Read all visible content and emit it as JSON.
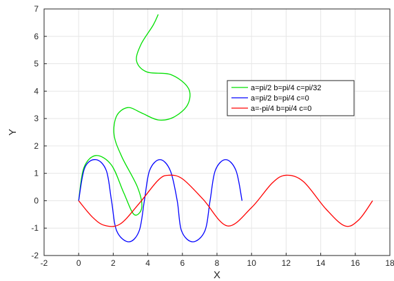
{
  "chart_data": {
    "type": "line",
    "title": "",
    "xlabel": "X",
    "ylabel": "Y",
    "xlim": [
      -2,
      18
    ],
    "ylim": [
      -2,
      7
    ],
    "xticks": [
      "-2",
      "0",
      "2",
      "4",
      "6",
      "8",
      "10",
      "12",
      "14",
      "16",
      "18"
    ],
    "yticks": [
      "-2",
      "-1",
      "0",
      "1",
      "2",
      "3",
      "4",
      "5",
      "6",
      "7"
    ],
    "grid": true,
    "legend_position": "right",
    "series": [
      {
        "name": "a=pi/2 b=pi/4 c=pi/32",
        "color": "#00e000",
        "x": [
          0,
          0.3,
          1.0,
          1.9,
          2.6,
          3.2,
          3.65,
          3.4,
          2.5,
          2.05,
          2.2,
          2.85,
          3.65,
          4.6,
          5.5,
          6.3,
          6.35,
          5.35,
          3.95,
          3.35,
          3.6,
          4.3,
          4.6
        ],
        "y": [
          0,
          1.2,
          1.65,
          1.3,
          0.3,
          -0.5,
          -0.25,
          0.5,
          1.6,
          2.4,
          3.1,
          3.4,
          3.2,
          2.95,
          3.05,
          3.5,
          4.1,
          4.6,
          4.7,
          5.1,
          5.7,
          6.4,
          6.8
        ]
      },
      {
        "name": "a=pi/2 b=pi/4 c=0",
        "color": "#0000ff",
        "x": [
          0,
          0.35,
          1.0,
          1.6,
          1.9,
          2.2,
          2.9,
          3.5,
          3.8,
          4.1,
          4.7,
          5.3,
          5.7,
          5.95,
          6.6,
          7.3,
          7.6,
          7.9,
          8.5,
          9.1,
          9.45
        ],
        "y": [
          0,
          1.2,
          1.5,
          1.1,
          0,
          -1.1,
          -1.5,
          -1.1,
          0,
          1.1,
          1.5,
          1.1,
          0,
          -1.1,
          -1.5,
          -1.1,
          0,
          1.1,
          1.5,
          1.1,
          0
        ]
      },
      {
        "name": "a=-pi/4 b=pi/4 c=0",
        "color": "#ff0000",
        "x": [
          0,
          0.8,
          1.5,
          2.4,
          3.5,
          4.6,
          5.2,
          6.0,
          7.2,
          8.6,
          10.0,
          11.2,
          12.0,
          13.0,
          14.3,
          15.4,
          16.2,
          17.0
        ],
        "y": [
          0,
          -0.6,
          -0.9,
          -0.85,
          -0.1,
          0.75,
          0.93,
          0.8,
          0.05,
          -0.92,
          -0.25,
          0.65,
          0.93,
          0.7,
          -0.3,
          -0.92,
          -0.7,
          0
        ]
      }
    ]
  }
}
